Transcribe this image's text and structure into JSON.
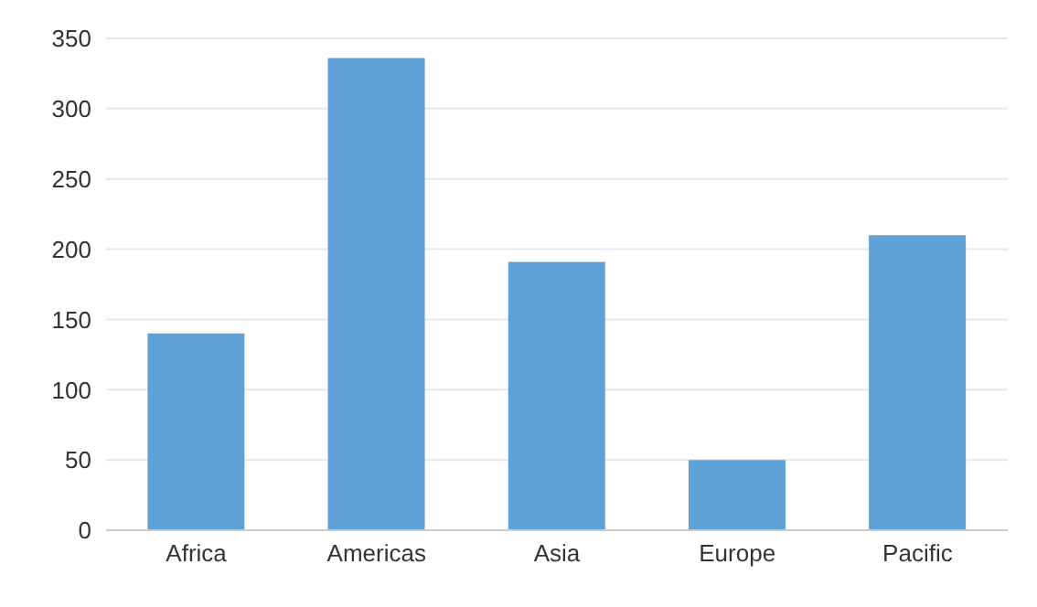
{
  "chart_data": {
    "type": "bar",
    "categories": [
      "Africa",
      "Americas",
      "Asia",
      "Europe",
      "Pacific"
    ],
    "values": [
      140,
      336,
      191,
      50,
      210
    ],
    "color": "#5fa2d8",
    "ylim": [
      0,
      350
    ],
    "yticks": [
      0,
      50,
      100,
      150,
      200,
      250,
      300,
      350
    ],
    "grid": "y"
  }
}
